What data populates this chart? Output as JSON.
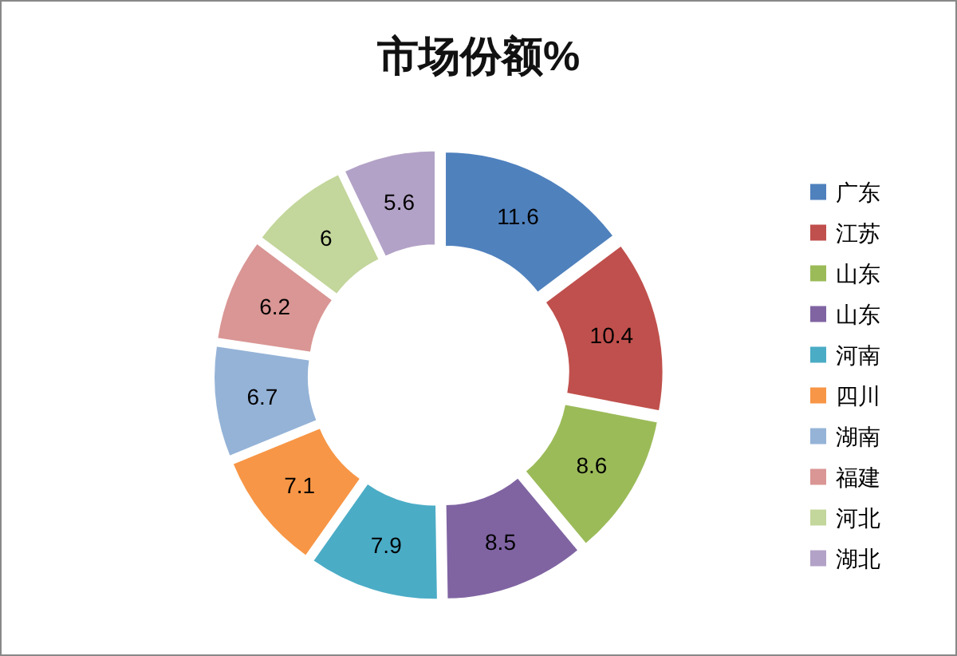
{
  "chart_data": {
    "type": "donut",
    "title": "市场份额%",
    "categories": [
      "广东",
      "江苏",
      "山东",
      "山东",
      "河南",
      "四川",
      "湖南",
      "福建",
      "河北",
      "湖北"
    ],
    "values": [
      11.6,
      10.4,
      8.6,
      8.5,
      7.9,
      7.1,
      6.7,
      6.2,
      6,
      5.6
    ],
    "colors": [
      "#4f81bd",
      "#c0504d",
      "#9bbb59",
      "#8064a2",
      "#4bacc6",
      "#f79646",
      "#95b3d7",
      "#d99694",
      "#c3d69b",
      "#b3a2c7"
    ],
    "data_labels": true,
    "legend": "right"
  }
}
